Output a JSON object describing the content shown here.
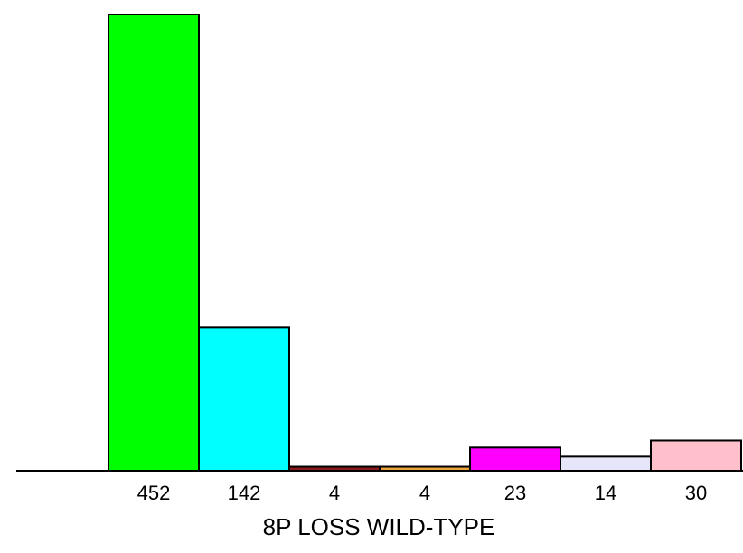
{
  "chart_data": {
    "type": "bar",
    "xlabel": "8P LOSS WILD-TYPE",
    "categories": [
      "452",
      "142",
      "4",
      "4",
      "23",
      "14",
      "30"
    ],
    "values": [
      452,
      142,
      4,
      4,
      23,
      14,
      30
    ],
    "colors": [
      "#00ff00",
      "#00ffff",
      "#8b1a1a",
      "#e8a33d",
      "#ff00ff",
      "#e6e6fa",
      "#ffc0cb"
    ],
    "ylim": [
      0,
      452
    ],
    "grid": false,
    "legend": "none"
  }
}
